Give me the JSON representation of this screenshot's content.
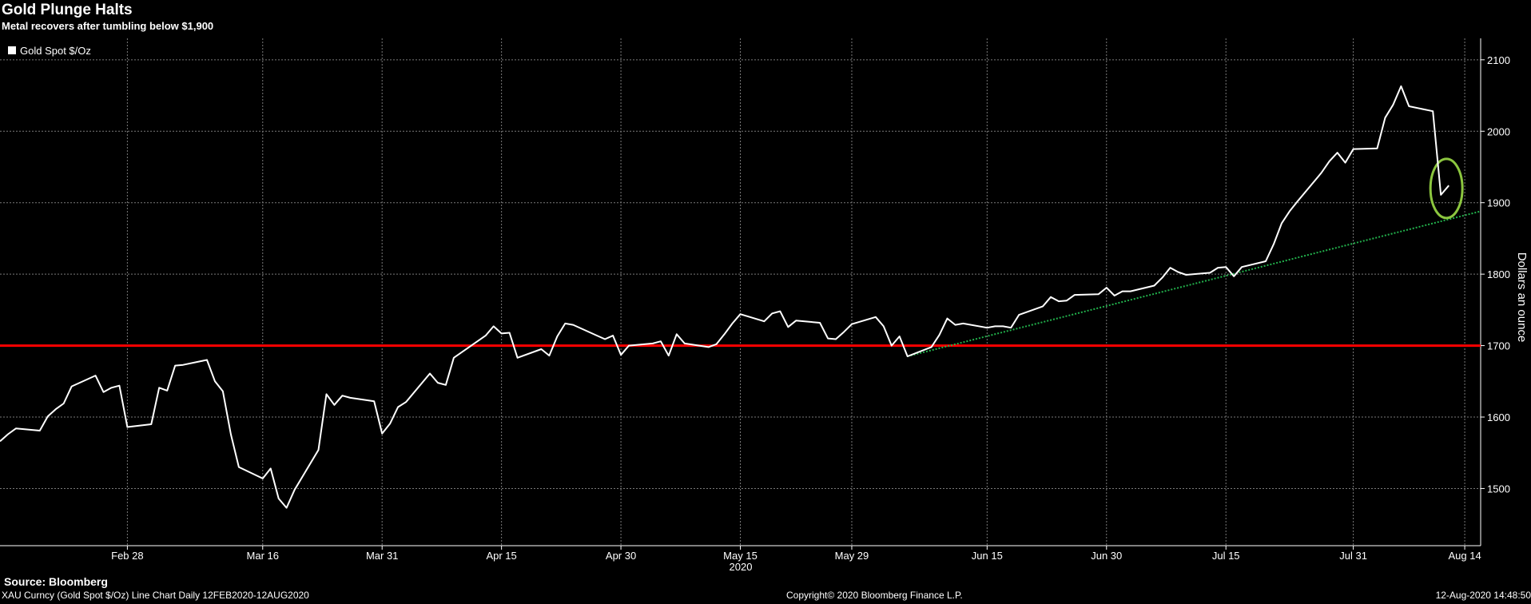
{
  "title": "Gold Plunge Halts",
  "subtitle": "Metal recovers after tumbling below $1,900",
  "footer": {
    "source": "Source: Bloomberg",
    "left": "XAU Curncy (Gold Spot  $/Oz) Line Chart  Daily 12FEB2020-12AUG2020",
    "center": "Copyright© 2020 Bloomberg Finance L.P.",
    "right": "12-Aug-2020 14:48:50"
  },
  "colors": {
    "background": "#000000",
    "series": "#ffffff",
    "grid": "#7a7a7a",
    "support": "#ff0000",
    "trendline": "#22b14c",
    "highlight": "#8cc63f"
  },
  "chart_data": {
    "type": "line",
    "title": "Gold Plunge Halts",
    "subtitle": "Metal recovers after tumbling below $1,900",
    "ylabel": "Dollars an ounce",
    "xlabel": "2020",
    "ylim": [
      1420,
      2130
    ],
    "y_ticks": [
      1500,
      1600,
      1700,
      1800,
      1900,
      2000,
      2100
    ],
    "x_range": [
      "2020-02-12",
      "2020-08-16"
    ],
    "x_ticks": [
      {
        "date": "2020-02-28",
        "label": "Feb 28"
      },
      {
        "date": "2020-03-16",
        "label": "Mar 16"
      },
      {
        "date": "2020-03-31",
        "label": "Mar 31"
      },
      {
        "date": "2020-04-15",
        "label": "Apr 15"
      },
      {
        "date": "2020-04-30",
        "label": "Apr 30"
      },
      {
        "date": "2020-05-15",
        "label": "May 15"
      },
      {
        "date": "2020-05-29",
        "label": "May 29"
      },
      {
        "date": "2020-06-15",
        "label": "Jun 15"
      },
      {
        "date": "2020-06-30",
        "label": "Jun 30"
      },
      {
        "date": "2020-07-15",
        "label": "Jul 15"
      },
      {
        "date": "2020-07-31",
        "label": "Jul 31"
      },
      {
        "date": "2020-08-14",
        "label": "Aug 14"
      }
    ],
    "grid": true,
    "legend": {
      "position": "top-left",
      "entries": [
        "Gold Spot $/Oz"
      ]
    },
    "series": [
      {
        "name": "Gold Spot $/Oz",
        "color": "#ffffff",
        "points": [
          [
            "2020-02-12",
            1566
          ],
          [
            "2020-02-13",
            1576
          ],
          [
            "2020-02-14",
            1584
          ],
          [
            "2020-02-17",
            1581
          ],
          [
            "2020-02-18",
            1601
          ],
          [
            "2020-02-19",
            1611
          ],
          [
            "2020-02-20",
            1619
          ],
          [
            "2020-02-21",
            1643
          ],
          [
            "2020-02-24",
            1658
          ],
          [
            "2020-02-25",
            1635
          ],
          [
            "2020-02-26",
            1641
          ],
          [
            "2020-02-27",
            1644
          ],
          [
            "2020-02-28",
            1586
          ],
          [
            "2020-03-02",
            1590
          ],
          [
            "2020-03-03",
            1641
          ],
          [
            "2020-03-04",
            1637
          ],
          [
            "2020-03-05",
            1672
          ],
          [
            "2020-03-06",
            1673
          ],
          [
            "2020-03-09",
            1680
          ],
          [
            "2020-03-10",
            1650
          ],
          [
            "2020-03-11",
            1636
          ],
          [
            "2020-03-12",
            1576
          ],
          [
            "2020-03-13",
            1530
          ],
          [
            "2020-03-16",
            1514
          ],
          [
            "2020-03-17",
            1528
          ],
          [
            "2020-03-18",
            1486
          ],
          [
            "2020-03-19",
            1473
          ],
          [
            "2020-03-20",
            1498
          ],
          [
            "2020-03-23",
            1554
          ],
          [
            "2020-03-24",
            1632
          ],
          [
            "2020-03-25",
            1617
          ],
          [
            "2020-03-26",
            1630
          ],
          [
            "2020-03-27",
            1627
          ],
          [
            "2020-03-30",
            1622
          ],
          [
            "2020-03-31",
            1577
          ],
          [
            "2020-04-01",
            1591
          ],
          [
            "2020-04-02",
            1614
          ],
          [
            "2020-04-03",
            1621
          ],
          [
            "2020-04-06",
            1661
          ],
          [
            "2020-04-07",
            1648
          ],
          [
            "2020-04-08",
            1645
          ],
          [
            "2020-04-09",
            1683
          ],
          [
            "2020-04-13",
            1714
          ],
          [
            "2020-04-14",
            1727
          ],
          [
            "2020-04-15",
            1717
          ],
          [
            "2020-04-16",
            1718
          ],
          [
            "2020-04-17",
            1683
          ],
          [
            "2020-04-20",
            1695
          ],
          [
            "2020-04-21",
            1686
          ],
          [
            "2020-04-22",
            1713
          ],
          [
            "2020-04-23",
            1731
          ],
          [
            "2020-04-24",
            1729
          ],
          [
            "2020-04-27",
            1714
          ],
          [
            "2020-04-28",
            1709
          ],
          [
            "2020-04-29",
            1714
          ],
          [
            "2020-04-30",
            1687
          ],
          [
            "2020-05-01",
            1700
          ],
          [
            "2020-05-04",
            1703
          ],
          [
            "2020-05-05",
            1706
          ],
          [
            "2020-05-06",
            1686
          ],
          [
            "2020-05-07",
            1716
          ],
          [
            "2020-05-08",
            1703
          ],
          [
            "2020-05-11",
            1698
          ],
          [
            "2020-05-12",
            1702
          ],
          [
            "2020-05-13",
            1716
          ],
          [
            "2020-05-14",
            1731
          ],
          [
            "2020-05-15",
            1744
          ],
          [
            "2020-05-18",
            1734
          ],
          [
            "2020-05-19",
            1745
          ],
          [
            "2020-05-20",
            1748
          ],
          [
            "2020-05-21",
            1726
          ],
          [
            "2020-05-22",
            1735
          ],
          [
            "2020-05-25",
            1732
          ],
          [
            "2020-05-26",
            1710
          ],
          [
            "2020-05-27",
            1709
          ],
          [
            "2020-05-28",
            1719
          ],
          [
            "2020-05-29",
            1730
          ],
          [
            "2020-06-01",
            1740
          ],
          [
            "2020-06-02",
            1727
          ],
          [
            "2020-06-03",
            1700
          ],
          [
            "2020-06-04",
            1713
          ],
          [
            "2020-06-05",
            1685
          ],
          [
            "2020-06-08",
            1698
          ],
          [
            "2020-06-09",
            1715
          ],
          [
            "2020-06-10",
            1738
          ],
          [
            "2020-06-11",
            1729
          ],
          [
            "2020-06-12",
            1731
          ],
          [
            "2020-06-15",
            1725
          ],
          [
            "2020-06-16",
            1727
          ],
          [
            "2020-06-17",
            1727
          ],
          [
            "2020-06-18",
            1725
          ],
          [
            "2020-06-19",
            1743
          ],
          [
            "2020-06-22",
            1755
          ],
          [
            "2020-06-23",
            1768
          ],
          [
            "2020-06-24",
            1762
          ],
          [
            "2020-06-25",
            1763
          ],
          [
            "2020-06-26",
            1771
          ],
          [
            "2020-06-29",
            1772
          ],
          [
            "2020-06-30",
            1781
          ],
          [
            "2020-07-01",
            1770
          ],
          [
            "2020-07-02",
            1776
          ],
          [
            "2020-07-03",
            1776
          ],
          [
            "2020-07-06",
            1784
          ],
          [
            "2020-07-07",
            1795
          ],
          [
            "2020-07-08",
            1809
          ],
          [
            "2020-07-09",
            1803
          ],
          [
            "2020-07-10",
            1799
          ],
          [
            "2020-07-13",
            1802
          ],
          [
            "2020-07-14",
            1809
          ],
          [
            "2020-07-15",
            1810
          ],
          [
            "2020-07-16",
            1797
          ],
          [
            "2020-07-17",
            1810
          ],
          [
            "2020-07-20",
            1818
          ],
          [
            "2020-07-21",
            1842
          ],
          [
            "2020-07-22",
            1871
          ],
          [
            "2020-07-23",
            1888
          ],
          [
            "2020-07-24",
            1902
          ],
          [
            "2020-07-27",
            1942
          ],
          [
            "2020-07-28",
            1958
          ],
          [
            "2020-07-29",
            1970
          ],
          [
            "2020-07-30",
            1956
          ],
          [
            "2020-07-31",
            1975
          ],
          [
            "2020-08-03",
            1976
          ],
          [
            "2020-08-04",
            2019
          ],
          [
            "2020-08-05",
            2037
          ],
          [
            "2020-08-06",
            2063
          ],
          [
            "2020-08-07",
            2035
          ],
          [
            "2020-08-10",
            2028
          ],
          [
            "2020-08-11",
            1911
          ],
          [
            "2020-08-12",
            1924
          ]
        ]
      }
    ],
    "annotations": [
      {
        "type": "horizontal-line",
        "y": 1700,
        "color": "#ff0000"
      },
      {
        "type": "trendline",
        "style": "dotted",
        "color": "#22b14c",
        "from": [
          "2020-06-05",
          1685
        ],
        "to": [
          "2020-08-16",
          1888
        ]
      },
      {
        "type": "ellipse",
        "color": "#8cc63f",
        "center": [
          "2020-08-12",
          1920
        ],
        "note": "circled recovery"
      }
    ]
  }
}
